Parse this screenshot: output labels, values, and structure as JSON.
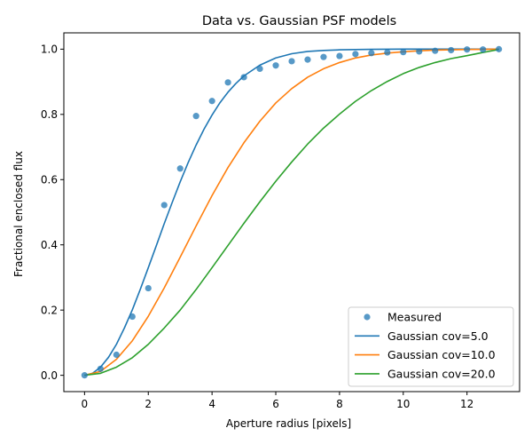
{
  "chart_data": {
    "type": "line",
    "title": "Data vs. Gaussian PSF models",
    "xlabel": "Aperture radius [pixels]",
    "ylabel": "Fractional enclosed flux",
    "xlim": [
      -0.65,
      13.65
    ],
    "ylim": [
      -0.05,
      1.05
    ],
    "xticks": [
      0,
      2,
      4,
      6,
      8,
      10,
      12
    ],
    "yticks": [
      0.0,
      0.2,
      0.4,
      0.6,
      0.8,
      1.0
    ],
    "xtick_labels": [
      "0",
      "2",
      "4",
      "6",
      "8",
      "10",
      "12"
    ],
    "ytick_labels": [
      "0.0",
      "0.2",
      "0.4",
      "0.6",
      "0.8",
      "1.0"
    ],
    "grid": false,
    "legend_position": "lower-right",
    "scatter": {
      "name": "Measured",
      "color": "#1f77b4",
      "x": [
        0,
        0.5,
        1.0,
        1.5,
        2.0,
        2.5,
        3.0,
        3.5,
        4.0,
        4.5,
        5.0,
        5.5,
        6.0,
        6.5,
        7.0,
        7.5,
        8.0,
        8.5,
        9.0,
        9.5,
        10.0,
        10.5,
        11.0,
        11.5,
        12.0,
        12.5,
        13.0
      ],
      "y": [
        0.0,
        0.02,
        0.063,
        0.18,
        0.267,
        0.522,
        0.634,
        0.795,
        0.841,
        0.898,
        0.914,
        0.94,
        0.95,
        0.963,
        0.968,
        0.976,
        0.979,
        0.985,
        0.988,
        0.99,
        0.991,
        0.993,
        0.995,
        0.997,
        0.999,
        0.999,
        1.0
      ]
    },
    "series": [
      {
        "name": "Gaussian cov=5.0",
        "color": "#1f77b4",
        "x": [
          0,
          0.25,
          0.5,
          0.75,
          1.0,
          1.25,
          1.5,
          1.75,
          2.0,
          2.25,
          2.5,
          2.75,
          3.0,
          3.25,
          3.5,
          3.75,
          4.0,
          4.25,
          4.5,
          4.75,
          5.0,
          5.5,
          6.0,
          6.5,
          7.0,
          7.5,
          8.0,
          9.0,
          10.0,
          11.0,
          12.0,
          13.0
        ],
        "y": [
          0.0,
          0.006,
          0.025,
          0.055,
          0.095,
          0.145,
          0.201,
          0.264,
          0.33,
          0.397,
          0.465,
          0.53,
          0.593,
          0.652,
          0.706,
          0.755,
          0.798,
          0.836,
          0.868,
          0.895,
          0.918,
          0.951,
          0.973,
          0.986,
          0.993,
          0.996,
          0.998,
          0.9995,
          1.0,
          1.0,
          1.0,
          1.0
        ]
      },
      {
        "name": "Gaussian cov=10.0",
        "color": "#ff7f0e",
        "x": [
          0,
          0.5,
          1.0,
          1.5,
          2.0,
          2.5,
          3.0,
          3.5,
          4.0,
          4.5,
          5.0,
          5.5,
          6.0,
          6.5,
          7.0,
          7.5,
          8.0,
          8.5,
          9.0,
          9.5,
          10.0,
          10.5,
          11.0,
          11.5,
          12.0,
          12.5,
          13.0
        ],
        "y": [
          0.0,
          0.012,
          0.049,
          0.106,
          0.181,
          0.268,
          0.362,
          0.458,
          0.551,
          0.637,
          0.713,
          0.779,
          0.835,
          0.879,
          0.914,
          0.94,
          0.959,
          0.973,
          0.982,
          0.988,
          0.992,
          0.995,
          0.997,
          0.998,
          0.999,
          0.9995,
          1.0
        ]
      },
      {
        "name": "Gaussian cov=20.0",
        "color": "#2ca02c",
        "x": [
          0,
          0.5,
          1.0,
          1.5,
          2.0,
          2.5,
          3.0,
          3.5,
          4.0,
          4.5,
          5.0,
          5.5,
          6.0,
          6.5,
          7.0,
          7.5,
          8.0,
          8.5,
          9.0,
          9.5,
          10.0,
          10.5,
          11.0,
          11.5,
          12.0,
          12.5,
          13.0
        ],
        "y": [
          0.0,
          0.006,
          0.025,
          0.054,
          0.095,
          0.145,
          0.2,
          0.263,
          0.33,
          0.398,
          0.466,
          0.532,
          0.595,
          0.654,
          0.709,
          0.758,
          0.801,
          0.84,
          0.873,
          0.901,
          0.925,
          0.944,
          0.959,
          0.971,
          0.98,
          0.99,
          0.999
        ]
      }
    ]
  }
}
